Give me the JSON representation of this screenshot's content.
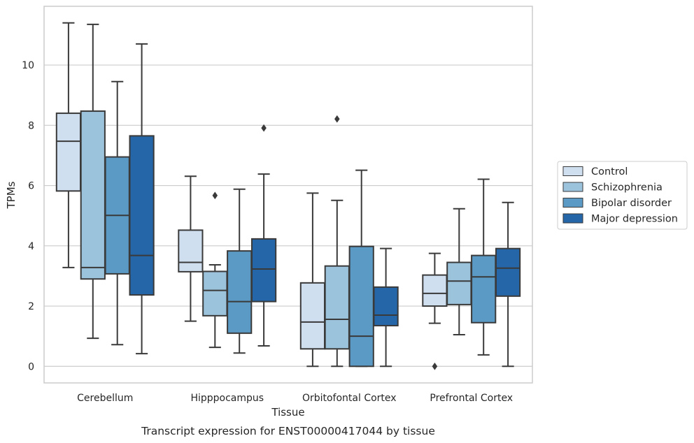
{
  "chart_data": {
    "type": "box",
    "title": "",
    "caption": "Transcript expression for ENST00000417044 by tissue",
    "xlabel": "Tissue",
    "ylabel": "TPMs",
    "ylim": [
      -0.55,
      11.95
    ],
    "yticks": [
      0,
      2,
      4,
      6,
      8,
      10
    ],
    "grid": "horizontal",
    "legend_position": "right",
    "categories": [
      "Cerebellum",
      "Hipppocampus",
      "Orbitofontal Cortex",
      "Prefrontal Cortex"
    ],
    "series": [
      {
        "name": "Control",
        "color": "#cfdff0",
        "boxes": [
          {
            "whislo": 3.28,
            "q1": 5.82,
            "med": 7.47,
            "q3": 8.4,
            "whishi": 11.4,
            "fliers": []
          },
          {
            "whislo": 1.5,
            "q1": 3.14,
            "med": 3.45,
            "q3": 4.52,
            "whishi": 6.31,
            "fliers": []
          },
          {
            "whislo": 0.0,
            "q1": 0.58,
            "med": 1.47,
            "q3": 2.77,
            "whishi": 5.75,
            "fliers": []
          },
          {
            "whislo": 1.43,
            "q1": 2.0,
            "med": 2.42,
            "q3": 3.03,
            "whishi": 3.75,
            "fliers": [
              0.0
            ]
          }
        ]
      },
      {
        "name": "Schizophrenia",
        "color": "#9cc3dc",
        "boxes": [
          {
            "whislo": 0.93,
            "q1": 2.9,
            "med": 3.28,
            "q3": 8.47,
            "whishi": 11.35,
            "fliers": []
          },
          {
            "whislo": 0.63,
            "q1": 1.68,
            "med": 2.52,
            "q3": 3.15,
            "whishi": 3.37,
            "fliers": [
              5.67
            ]
          },
          {
            "whislo": 0.0,
            "q1": 0.58,
            "med": 1.56,
            "q3": 3.33,
            "whishi": 5.51,
            "fliers": [
              8.21
            ]
          },
          {
            "whislo": 1.05,
            "q1": 2.05,
            "med": 2.83,
            "q3": 3.45,
            "whishi": 5.23,
            "fliers": []
          }
        ]
      },
      {
        "name": "Bipolar disorder",
        "color": "#5a9ac5",
        "boxes": [
          {
            "whislo": 0.72,
            "q1": 3.07,
            "med": 5.01,
            "q3": 6.95,
            "whishi": 9.45,
            "fliers": []
          },
          {
            "whislo": 0.44,
            "q1": 1.1,
            "med": 2.15,
            "q3": 3.83,
            "whishi": 5.88,
            "fliers": []
          },
          {
            "whislo": 0.0,
            "q1": 0.0,
            "med": 1.0,
            "q3": 3.98,
            "whishi": 6.51,
            "fliers": []
          },
          {
            "whislo": 0.38,
            "q1": 1.45,
            "med": 2.97,
            "q3": 3.68,
            "whishi": 6.21,
            "fliers": []
          }
        ]
      },
      {
        "name": "Major depression",
        "color": "#2566a8",
        "boxes": [
          {
            "whislo": 0.42,
            "q1": 2.37,
            "med": 3.68,
            "q3": 7.65,
            "whishi": 10.7,
            "fliers": []
          },
          {
            "whislo": 0.68,
            "q1": 2.15,
            "med": 3.23,
            "q3": 4.23,
            "whishi": 6.38,
            "fliers": [
              7.91
            ]
          },
          {
            "whislo": 0.0,
            "q1": 1.35,
            "med": 1.7,
            "q3": 2.63,
            "whishi": 3.91,
            "fliers": []
          },
          {
            "whislo": 0.0,
            "q1": 2.33,
            "med": 3.26,
            "q3": 3.91,
            "whishi": 5.44,
            "fliers": []
          }
        ]
      }
    ]
  }
}
